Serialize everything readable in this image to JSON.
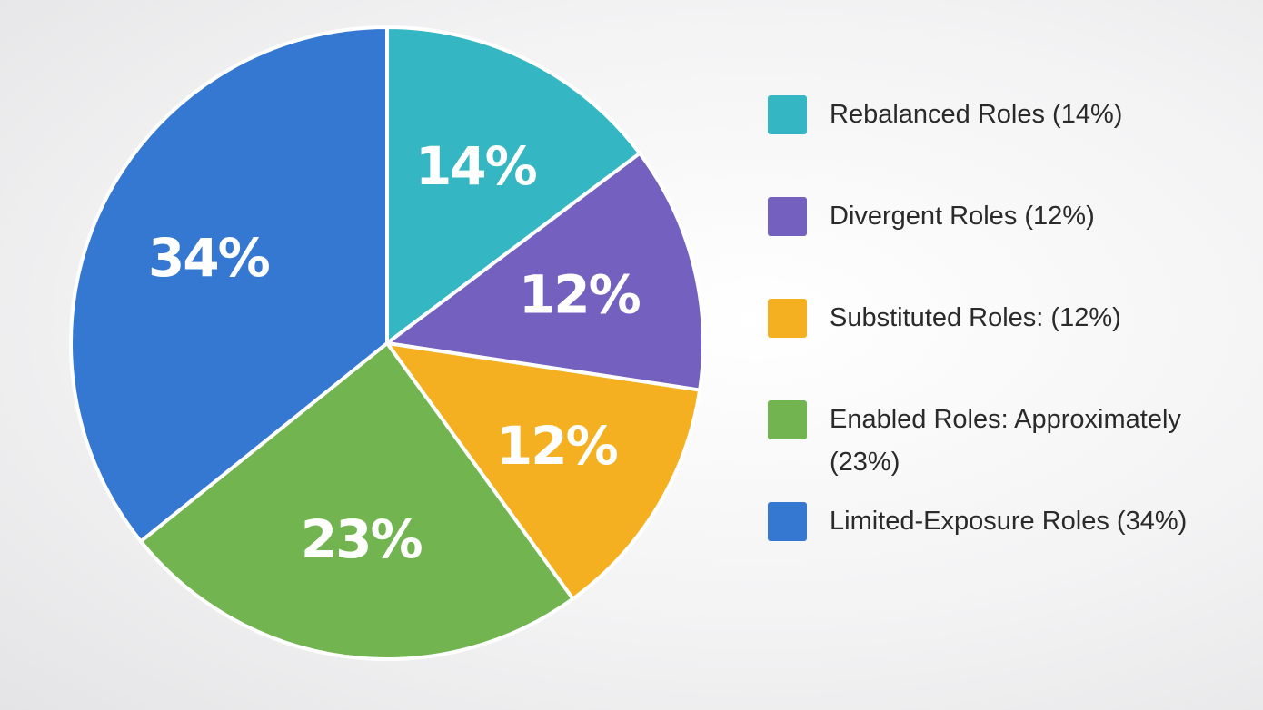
{
  "chart_data": {
    "type": "pie",
    "title": "",
    "slices": [
      {
        "label": "Rebalanced Roles",
        "value": 14,
        "display": "14%",
        "color": "#35b6c3"
      },
      {
        "label": "Divergent Roles",
        "value": 12,
        "display": "12%",
        "color": "#7461bf"
      },
      {
        "label": "Substituted Roles",
        "value": 12,
        "display": "12%",
        "color": "#f4b020"
      },
      {
        "label": "Enabled Roles",
        "value": 23,
        "display": "23%",
        "color": "#72b550"
      },
      {
        "label": "Limited-Exposure Roles",
        "value": 34,
        "display": "34%",
        "color": "#3478d2"
      }
    ],
    "legend": {
      "placement": "right",
      "entries": [
        {
          "text": "Rebalanced Roles (14%)",
          "color": "#35b6c3"
        },
        {
          "text": "Divergent Roles (12%)",
          "color": "#7461bf"
        },
        {
          "text": "Substituted Roles: (12%)",
          "color": "#f4b020"
        },
        {
          "text": "Enabled Roles: Approximately (23%)",
          "color": "#72b550"
        },
        {
          "text": "Limited-Exposure Roles (34%)",
          "color": "#3478d2"
        }
      ]
    }
  }
}
